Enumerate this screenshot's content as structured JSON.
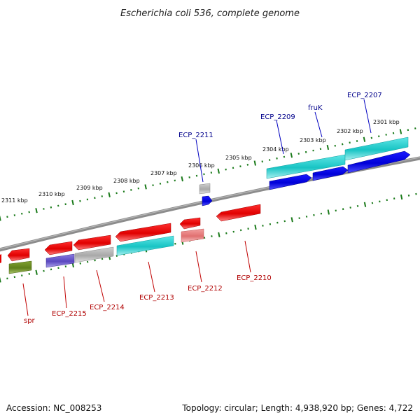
{
  "title": "Escherichia coli 536, complete genome",
  "footer": {
    "accession": "Accession: NC_008253",
    "stats": "Topology: circular; Length: 4,938,920 bp; Genes: 4,722"
  },
  "ticks": [
    "2311 kbp",
    "2310 kbp",
    "2309 kbp",
    "2308 kbp",
    "2307 kbp",
    "2306 kbp",
    "2305 kbp",
    "2304 kbp",
    "2303 kbp",
    "2302 kbp",
    "2301 kbp"
  ],
  "labels": {
    "ecp_2207": "ECP_2207",
    "fruk": "fruK",
    "ecp_2209": "ECP_2209",
    "ecp_2211": "ECP_2211",
    "ecp_2210": "ECP_2210",
    "ecp_2212": "ECP_2212",
    "ecp_2213": "ECP_2213",
    "ecp_2214": "ECP_2214",
    "ecp_2215": "ECP_2215",
    "spr": "spr"
  },
  "colors": {
    "backbone": "#808080",
    "ticks": "#1a7a1a",
    "cds_red": "#ff0000",
    "cds_blue": "#0000ee",
    "cyan": "#22cccc",
    "slate": "#6a5acd",
    "silver": "#b0b0b0",
    "olive": "#6b8e23",
    "pink": "#f08080",
    "label_forward": "#00008b",
    "label_reverse": "#b00000"
  }
}
